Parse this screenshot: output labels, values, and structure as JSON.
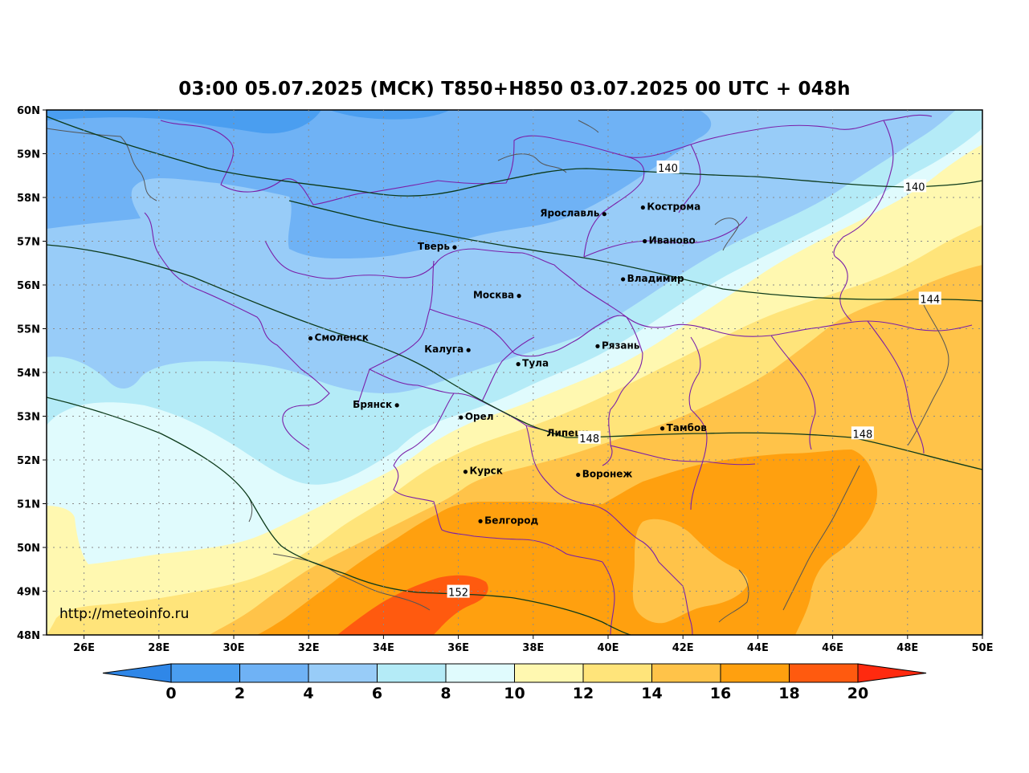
{
  "title": "03:00 05.07.2025 (МСК) T850+H850 03.07.2025 00 UTC + 048h",
  "watermark": "http://meteoinfo.ru",
  "lat_labels": [
    "60N",
    "59N",
    "58N",
    "57N",
    "56N",
    "55N",
    "54N",
    "53N",
    "52N",
    "51N",
    "50N",
    "49N",
    "48N"
  ],
  "lon_labels": [
    "26E",
    "28E",
    "30E",
    "32E",
    "34E",
    "36E",
    "38E",
    "40E",
    "42E",
    "44E",
    "46E",
    "48E",
    "50E"
  ],
  "cities": [
    {
      "name": "Ярославль",
      "lon": 39.9,
      "lat": 57.62,
      "label_side": "left"
    },
    {
      "name": "Кострома",
      "lon": 40.93,
      "lat": 57.77,
      "label_side": "right"
    },
    {
      "name": "Иваново",
      "lon": 40.98,
      "lat": 57.0,
      "label_side": "right"
    },
    {
      "name": "Тверь",
      "lon": 35.9,
      "lat": 56.86,
      "label_side": "left"
    },
    {
      "name": "Владимир",
      "lon": 40.4,
      "lat": 56.13,
      "label_side": "right"
    },
    {
      "name": "Москва",
      "lon": 37.62,
      "lat": 55.75,
      "label_side": "left"
    },
    {
      "name": "Смоленск",
      "lon": 32.05,
      "lat": 54.78,
      "label_side": "right"
    },
    {
      "name": "Калуга",
      "lon": 36.27,
      "lat": 54.51,
      "label_side": "left"
    },
    {
      "name": "Рязань",
      "lon": 39.72,
      "lat": 54.6,
      "label_side": "right"
    },
    {
      "name": "Тула",
      "lon": 37.6,
      "lat": 54.19,
      "label_side": "right"
    },
    {
      "name": "Брянск",
      "lon": 34.36,
      "lat": 53.25,
      "label_side": "left"
    },
    {
      "name": "Орел",
      "lon": 36.07,
      "lat": 52.97,
      "label_side": "right"
    },
    {
      "name": "Липецк",
      "lon": 39.6,
      "lat": 52.6,
      "label_side": "left"
    },
    {
      "name": "Тамбов",
      "lon": 41.45,
      "lat": 52.72,
      "label_side": "right"
    },
    {
      "name": "Курск",
      "lon": 36.19,
      "lat": 51.73,
      "label_side": "right"
    },
    {
      "name": "Воронеж",
      "lon": 39.2,
      "lat": 51.66,
      "label_side": "right"
    },
    {
      "name": "Белгород",
      "lon": 36.59,
      "lat": 50.6,
      "label_side": "right"
    }
  ],
  "contours": [
    {
      "level": 140,
      "labels": [
        {
          "text": "140",
          "lon": 41.6,
          "lat": 58.68
        },
        {
          "text": "140",
          "lon": 48.2,
          "lat": 58.25
        }
      ]
    },
    {
      "level": 144,
      "labels": [
        {
          "text": "144",
          "lon": 48.6,
          "lat": 55.68
        }
      ]
    },
    {
      "level": 148,
      "labels": [
        {
          "text": "148",
          "lon": 39.5,
          "lat": 52.5
        },
        {
          "text": "148",
          "lon": 46.8,
          "lat": 52.6
        }
      ]
    },
    {
      "level": 152,
      "labels": [
        {
          "text": "152",
          "lon": 36.0,
          "lat": 48.98
        }
      ]
    }
  ],
  "colorbar": {
    "ticks": [
      "0",
      "2",
      "4",
      "6",
      "8",
      "10",
      "12",
      "14",
      "16",
      "18",
      "20"
    ],
    "colors": [
      "#4a9ef0",
      "#6fb2f5",
      "#98ccf8",
      "#b4ebf7",
      "#e0fbfd",
      "#fff8b0",
      "#ffe47a",
      "#ffc349",
      "#ffa00f",
      "#ff5a0f"
    ],
    "under_color": "#2f87e8",
    "over_color": "#ff2a0f"
  },
  "field_colors": {
    "t_4_6": "#98ccf8",
    "t_2_4": "#6fb2f5",
    "t_0_2": "#4a9ef0",
    "t_6_8": "#b4ebf7",
    "t_8_10": "#e0fbfd",
    "t_10_12": "#fff8b0",
    "t_12_14": "#ffe47a",
    "t_14_16": "#ffc349",
    "t_16_18": "#ffa00f",
    "t_18_20": "#ff5a0f",
    "boundary_color": "#7a1fa8",
    "coast_color": "#555555",
    "contour_color": "#0c3a1a"
  }
}
